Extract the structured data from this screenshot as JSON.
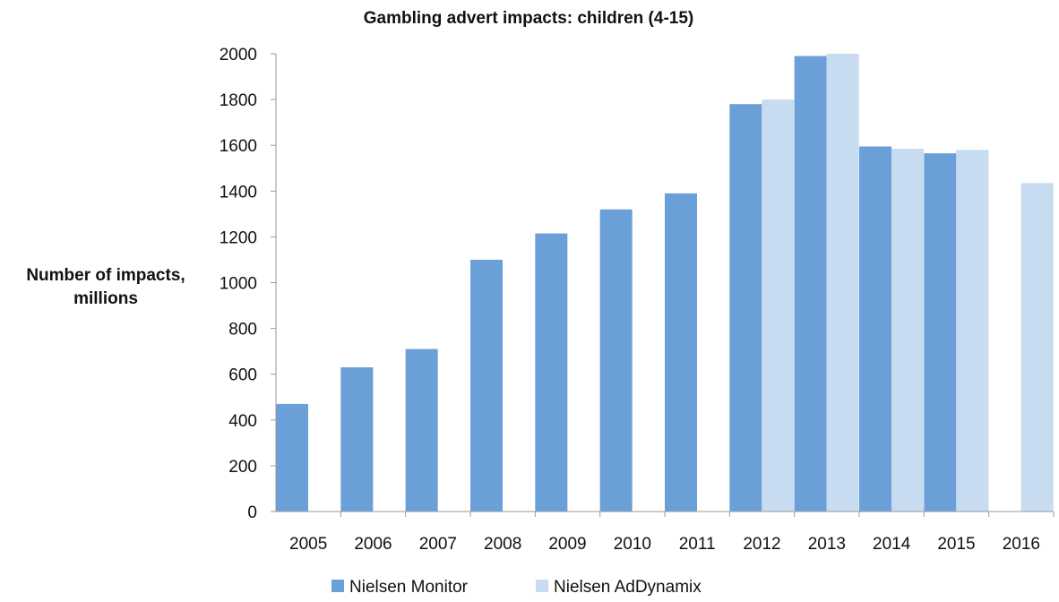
{
  "chart_data": {
    "type": "bar",
    "title": "Gambling advert impacts: children (4-15)",
    "xlabel": "",
    "ylabel_lines": [
      "Number of impacts,",
      "millions"
    ],
    "ylim": [
      0,
      2000
    ],
    "yticks": [
      0,
      200,
      400,
      600,
      800,
      1000,
      1200,
      1400,
      1600,
      1800,
      2000
    ],
    "grid": false,
    "legend_position": "bottom",
    "categories": [
      "2005",
      "2006",
      "2007",
      "2008",
      "2009",
      "2010",
      "2011",
      "2012",
      "2013",
      "2014",
      "2015",
      "2016"
    ],
    "series": [
      {
        "name": "Nielsen Monitor",
        "color": "#6a9fd8",
        "values": [
          470,
          630,
          710,
          1100,
          1215,
          1320,
          1390,
          1780,
          1990,
          1595,
          1565,
          null
        ]
      },
      {
        "name": "Nielsen AdDynamix",
        "color": "#c7dbf1",
        "values": [
          null,
          null,
          null,
          null,
          null,
          null,
          null,
          1800,
          2000,
          1585,
          1580,
          1435
        ]
      }
    ]
  }
}
